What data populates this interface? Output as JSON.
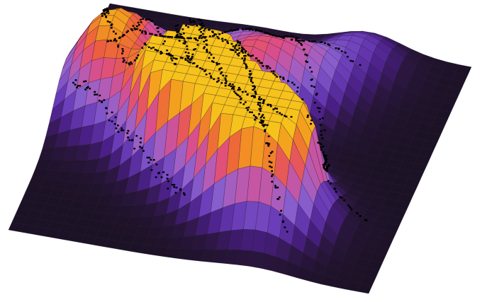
{
  "chart_data": {
    "type": "surface3d",
    "title": "",
    "xlabel": "",
    "ylabel": "",
    "zlabel": "",
    "grid": true,
    "legend": "none",
    "colormap": "inferno",
    "colormap_stops": [
      "#1c1226",
      "#2b1640",
      "#4a1f86",
      "#6a3cb8",
      "#8c62cf",
      "#b45cb6",
      "#dd4d86",
      "#ec5f3d",
      "#f39a1f",
      "#f6c21c"
    ],
    "surface_grid_resolution": [
      30,
      30
    ],
    "x_range": [
      0,
      1
    ],
    "y_range": [
      0,
      1
    ],
    "z_range": [
      0,
      1
    ],
    "peaks": [
      {
        "x": 0.1,
        "y": 0.4,
        "height": 0.55
      },
      {
        "x": 0.2,
        "y": 0.3,
        "height": 0.4
      },
      {
        "x": 0.12,
        "y": 0.52,
        "height": 0.45
      },
      {
        "x": 0.42,
        "y": 0.2,
        "height": 0.35
      },
      {
        "x": 0.48,
        "y": 0.38,
        "height": 0.5
      },
      {
        "x": 0.62,
        "y": 0.28,
        "height": 0.45
      },
      {
        "x": 0.72,
        "y": 0.1,
        "height": 0.3
      },
      {
        "x": 0.3,
        "y": 0.55,
        "height": 0.4
      },
      {
        "x": 0.4,
        "y": 0.58,
        "height": 0.85
      },
      {
        "x": 0.38,
        "y": 0.62,
        "height": 0.8
      },
      {
        "x": 0.55,
        "y": 0.75,
        "height": 0.7
      },
      {
        "x": 0.7,
        "y": 0.8,
        "height": 0.65
      },
      {
        "x": 0.62,
        "y": 0.7,
        "height": 0.75
      }
    ],
    "trails": [
      [
        [
          0.05,
          0.2
        ],
        [
          0.15,
          0.25
        ],
        [
          0.25,
          0.35
        ],
        [
          0.35,
          0.45
        ],
        [
          0.45,
          0.5
        ],
        [
          0.55,
          0.55
        ],
        [
          0.65,
          0.62
        ],
        [
          0.8,
          0.68
        ],
        [
          0.92,
          0.72
        ]
      ],
      [
        [
          0.2,
          0.05
        ],
        [
          0.25,
          0.2
        ],
        [
          0.32,
          0.35
        ],
        [
          0.38,
          0.45
        ],
        [
          0.42,
          0.55
        ],
        [
          0.5,
          0.65
        ],
        [
          0.58,
          0.75
        ],
        [
          0.68,
          0.85
        ],
        [
          0.75,
          0.92
        ]
      ],
      [
        [
          0.08,
          0.35
        ],
        [
          0.12,
          0.45
        ],
        [
          0.2,
          0.55
        ],
        [
          0.3,
          0.6
        ],
        [
          0.4,
          0.62
        ],
        [
          0.5,
          0.68
        ],
        [
          0.62,
          0.72
        ],
        [
          0.72,
          0.78
        ]
      ],
      [
        [
          0.35,
          0.1
        ],
        [
          0.45,
          0.15
        ],
        [
          0.55,
          0.22
        ],
        [
          0.62,
          0.3
        ],
        [
          0.7,
          0.4
        ],
        [
          0.75,
          0.55
        ],
        [
          0.8,
          0.7
        ]
      ],
      [
        [
          0.05,
          0.55
        ],
        [
          0.15,
          0.6
        ],
        [
          0.25,
          0.7
        ],
        [
          0.35,
          0.78
        ],
        [
          0.45,
          0.85
        ]
      ],
      [
        [
          0.45,
          0.4
        ],
        [
          0.5,
          0.5
        ],
        [
          0.55,
          0.6
        ],
        [
          0.6,
          0.7
        ],
        [
          0.65,
          0.8
        ],
        [
          0.7,
          0.88
        ]
      ],
      [
        [
          0.1,
          0.1
        ],
        [
          0.2,
          0.15
        ],
        [
          0.3,
          0.2
        ],
        [
          0.45,
          0.22
        ],
        [
          0.6,
          0.18
        ],
        [
          0.75,
          0.2
        ]
      ]
    ]
  }
}
